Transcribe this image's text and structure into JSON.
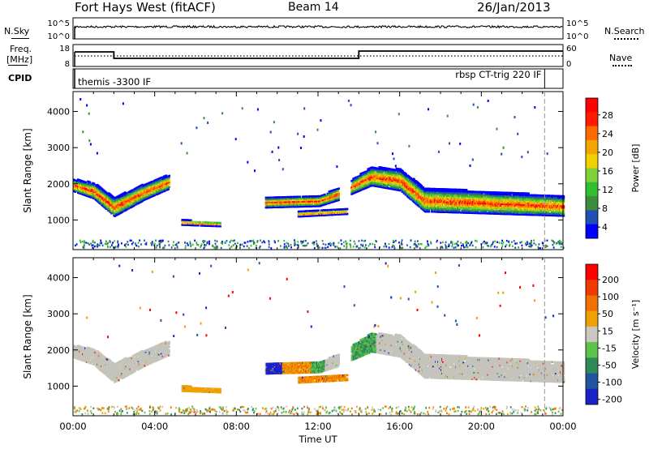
{
  "header": {
    "station": "Fort Hays West (fitACF)",
    "beam": "Beam 14",
    "date": "26/Jan/2013"
  },
  "top_panels": {
    "nsky_label": "N.Sky",
    "nsearch_label": "N.Search",
    "nsky_ticks": [
      "10^5",
      "10^0"
    ],
    "nsearch_ticks": [
      "10^5",
      "10^0"
    ],
    "freq_label_1": "Freq.",
    "freq_label_2": "[MHz]",
    "freq_ticks": [
      "18",
      "8"
    ],
    "nave_label": "Nave",
    "nave_ticks": [
      "60",
      "0"
    ],
    "cpid_label": "CPID",
    "cpid_left": "themis -3300 IF",
    "cpid_right": "rbsp CT-trig 220 IF"
  },
  "chart_data": [
    {
      "type": "heatmap",
      "name": "power-panel",
      "ylabel": "Slant Range [km]",
      "ylim": [
        180,
        4550
      ],
      "xlim": [
        0,
        24
      ],
      "y_ticks": [
        1000,
        2000,
        3000,
        4000
      ],
      "colorbar_label": "Power [dB]",
      "colorbar_ticks": [
        "28",
        "24",
        "20",
        "16",
        "12",
        "8",
        "4"
      ],
      "colors": [
        "#0000ff",
        "#214fb4",
        "#3c8c3c",
        "#2fbf2f",
        "#7fd03a",
        "#f0d000",
        "#f5a500",
        "#ff6a00",
        "#ff1a00",
        "#ff0000"
      ]
    },
    {
      "type": "heatmap",
      "name": "velocity-panel",
      "ylabel": "Slant Range [km]",
      "ylim": [
        180,
        4550
      ],
      "xlim": [
        0,
        24
      ],
      "y_ticks": [
        1000,
        2000,
        3000,
        4000
      ],
      "xlabel": "Time UT",
      "x_tick_labels": [
        "00:00",
        "04:00",
        "08:00",
        "12:00",
        "16:00",
        "20:00",
        "00:00"
      ],
      "colorbar_label": "Velocity [m s⁻¹]",
      "colorbar_ticks": [
        "200",
        "100",
        "50",
        "15",
        "-15",
        "-50",
        "-100",
        "-200"
      ],
      "colors": [
        "#1a22c8",
        "#2255a0",
        "#2e8b57",
        "#5dc34a",
        "#c8c8c0",
        "#f0a000",
        "#f07000",
        "#f03a00",
        "#ff0000"
      ],
      "ground_scatter_color": "#c4c4bc"
    }
  ]
}
